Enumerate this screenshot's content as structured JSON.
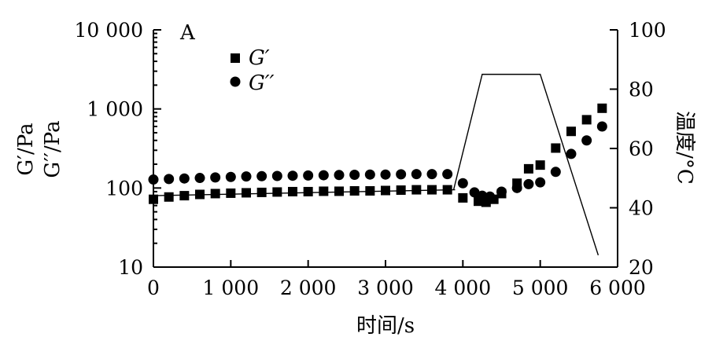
{
  "chart_data": {
    "type": "scatter",
    "panel_label": "A",
    "xlabel": "时间/s",
    "ylabel_left_line1": "G′/Pa",
    "ylabel_left_line2": "G′′/Pa",
    "ylabel_right": "温度/°C",
    "xlim": [
      0,
      6000
    ],
    "xticks": [
      0,
      1000,
      2000,
      3000,
      4000,
      5000,
      6000
    ],
    "xtick_labels": [
      "0",
      "1 000",
      "2 000",
      "3 000",
      "4 000",
      "5 000",
      "6 000"
    ],
    "ylim_left": [
      10,
      10000
    ],
    "yscale_left": "log",
    "yticks_left": [
      10,
      100,
      1000,
      10000
    ],
    "ytick_labels_left": [
      "10",
      "100",
      "1 000",
      "10 000"
    ],
    "ylim_right": [
      20,
      100
    ],
    "yticks_right": [
      20,
      40,
      60,
      80,
      100
    ],
    "ytick_labels_right": [
      "20",
      "40",
      "60",
      "80",
      "100"
    ],
    "legend_position": "upper-left",
    "series": [
      {
        "name": "G′",
        "marker": "square",
        "axis": "left",
        "points": [
          [
            0,
            72
          ],
          [
            200,
            77
          ],
          [
            400,
            80
          ],
          [
            600,
            83
          ],
          [
            800,
            85
          ],
          [
            1000,
            86
          ],
          [
            1200,
            87
          ],
          [
            1400,
            88
          ],
          [
            1600,
            89
          ],
          [
            1800,
            90
          ],
          [
            2000,
            90
          ],
          [
            2200,
            91
          ],
          [
            2400,
            91
          ],
          [
            2600,
            92
          ],
          [
            2800,
            92
          ],
          [
            3000,
            93
          ],
          [
            3200,
            94
          ],
          [
            3400,
            95
          ],
          [
            3600,
            95
          ],
          [
            3800,
            95
          ],
          [
            4000,
            75
          ],
          [
            4200,
            68
          ],
          [
            4300,
            66
          ],
          [
            4400,
            72
          ],
          [
            4500,
            85
          ],
          [
            4700,
            115
          ],
          [
            4850,
            175
          ],
          [
            5000,
            195
          ],
          [
            5200,
            320
          ],
          [
            5400,
            520
          ],
          [
            5600,
            730
          ],
          [
            5800,
            1020
          ]
        ]
      },
      {
        "name": "G′′",
        "marker": "circle",
        "axis": "left",
        "points": [
          [
            0,
            128
          ],
          [
            200,
            130
          ],
          [
            400,
            132
          ],
          [
            600,
            134
          ],
          [
            800,
            136
          ],
          [
            1000,
            138
          ],
          [
            1200,
            140
          ],
          [
            1400,
            141
          ],
          [
            1600,
            142
          ],
          [
            1800,
            143
          ],
          [
            2000,
            144
          ],
          [
            2200,
            145
          ],
          [
            2400,
            146
          ],
          [
            2600,
            147
          ],
          [
            2800,
            148
          ],
          [
            3000,
            148
          ],
          [
            3200,
            149
          ],
          [
            3400,
            150
          ],
          [
            3600,
            150
          ],
          [
            3800,
            150
          ],
          [
            4000,
            115
          ],
          [
            4150,
            88
          ],
          [
            4250,
            80
          ],
          [
            4350,
            78
          ],
          [
            4500,
            90
          ],
          [
            4700,
            100
          ],
          [
            4850,
            112
          ],
          [
            5000,
            118
          ],
          [
            5200,
            160
          ],
          [
            5400,
            270
          ],
          [
            5600,
            400
          ],
          [
            5800,
            600
          ]
        ]
      },
      {
        "name": "G′ trend",
        "style": "line",
        "axis": "left",
        "points": [
          [
            0,
            80
          ],
          [
            3900,
            95
          ]
        ]
      },
      {
        "name": "温度",
        "style": "line",
        "axis": "right",
        "points": [
          [
            3880,
            46
          ],
          [
            4250,
            85
          ],
          [
            5000,
            85
          ],
          [
            5750,
            24
          ]
        ]
      }
    ]
  }
}
